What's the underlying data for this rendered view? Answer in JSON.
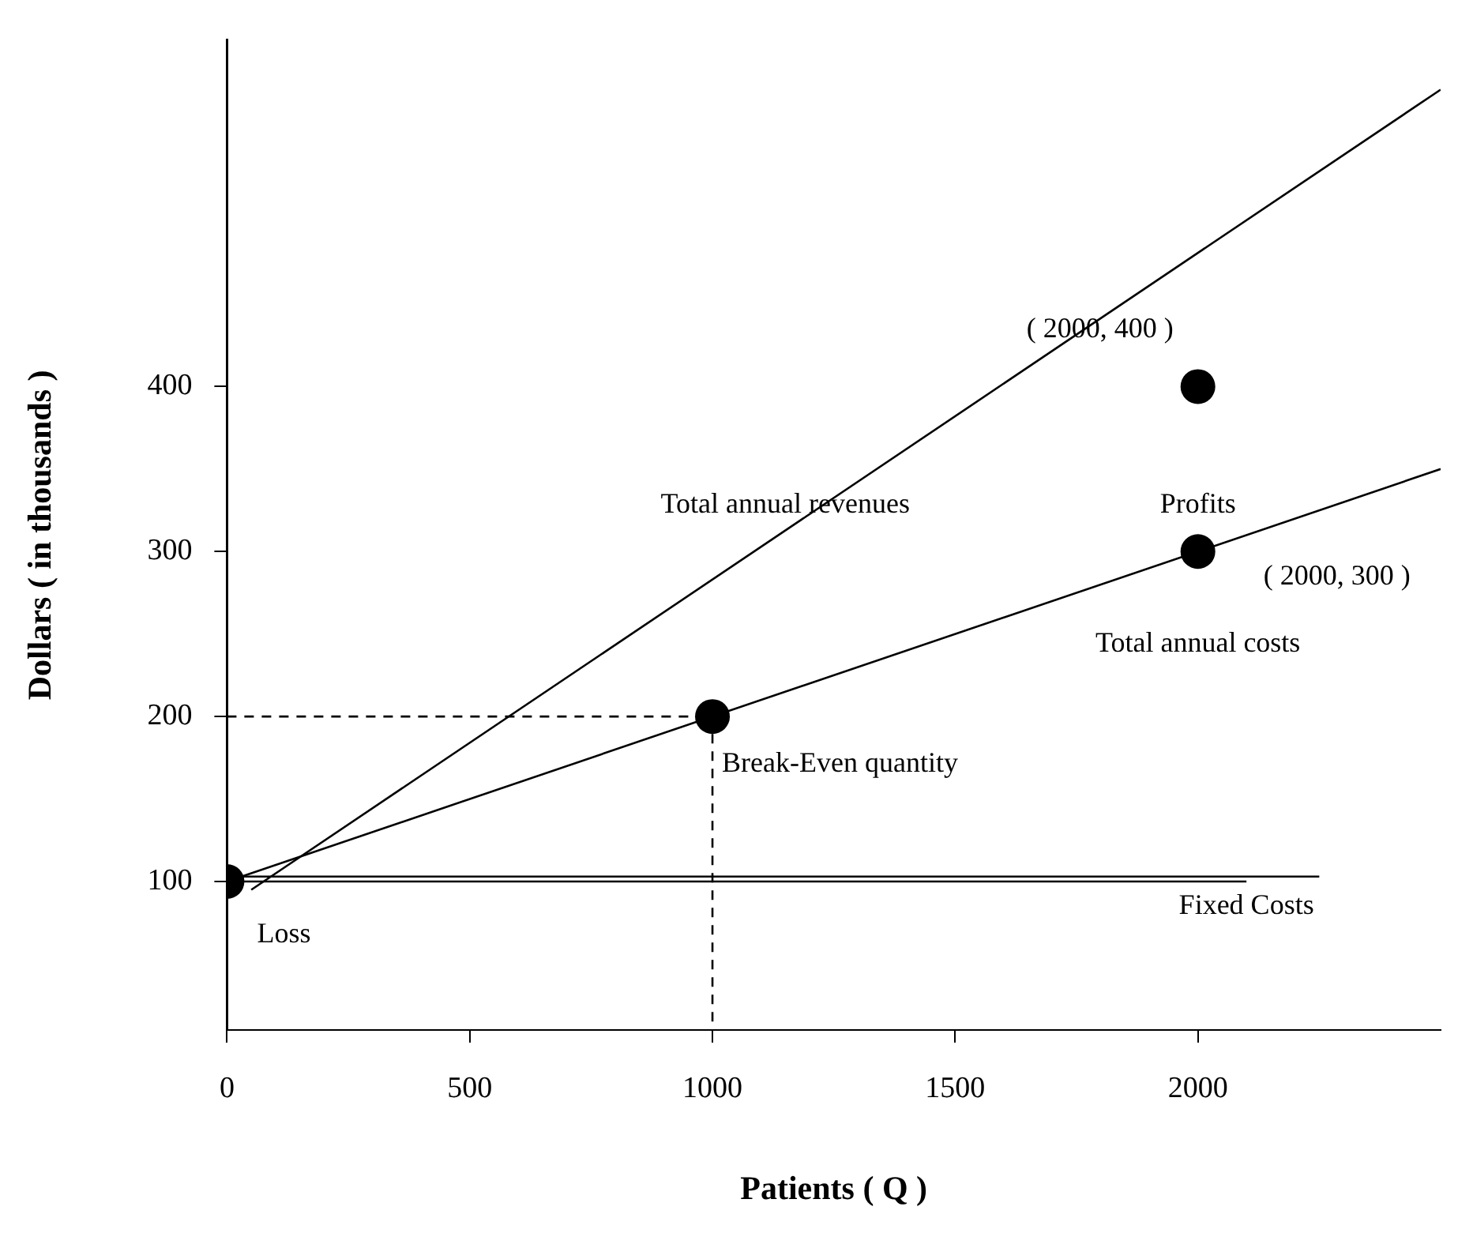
{
  "chart_data": {
    "type": "line",
    "xlabel": "Patients ( Q )",
    "ylabel": "Dollars ( in thousands )",
    "xlim": [
      0,
      2500
    ],
    "xticks": [
      0,
      500,
      1000,
      1500,
      2000
    ],
    "ylim": [
      10,
      610
    ],
    "yticks": [
      100,
      200,
      300,
      400
    ],
    "grid": false,
    "legend": false,
    "series": [
      {
        "x": [
          50,
          2500
        ],
        "values": [
          95,
          580
        ],
        "color": "#000000",
        "marker": "none",
        "line_style": "solid"
      },
      {
        "x": [
          0,
          2500
        ],
        "values": [
          100,
          350
        ],
        "color": "#000000",
        "marker": "none",
        "line_style": "solid"
      },
      {
        "x": [
          0,
          2250
        ],
        "values": [
          103,
          103
        ],
        "color": "#000000",
        "marker": "none",
        "line_style": "solid"
      },
      {
        "x": [
          0,
          2100
        ],
        "values": [
          100,
          100
        ],
        "color": "#000000",
        "marker": "none",
        "line_style": "solid"
      },
      {
        "x": [
          0,
          1000
        ],
        "values": [
          200,
          200
        ],
        "color": "#000000",
        "marker": "none",
        "line_style": "dashed"
      },
      {
        "x": [
          1000,
          1000
        ],
        "values": [
          200,
          10
        ],
        "color": "#000000",
        "marker": "none",
        "line_style": "dashed"
      },
      {
        "type": "scatter",
        "x": [
          0,
          1000,
          2000,
          2000
        ],
        "values": [
          100,
          200,
          300,
          400
        ],
        "color": "#000000",
        "marker": "circle"
      }
    ],
    "annotations": [
      "Total annual revenues",
      "Profits",
      {
        "text": "( 2000, 400 )",
        "x": 2000,
        "y": 400
      },
      {
        "text": "( 2000, 300 )",
        "x": 2000,
        "y": 300
      },
      "Total annual costs",
      {
        "text": "Break-Even quantity",
        "x": 1000,
        "y": 200
      },
      {
        "text": "Loss",
        "x": 0,
        "y": 100
      },
      "Fixed Costs"
    ]
  }
}
